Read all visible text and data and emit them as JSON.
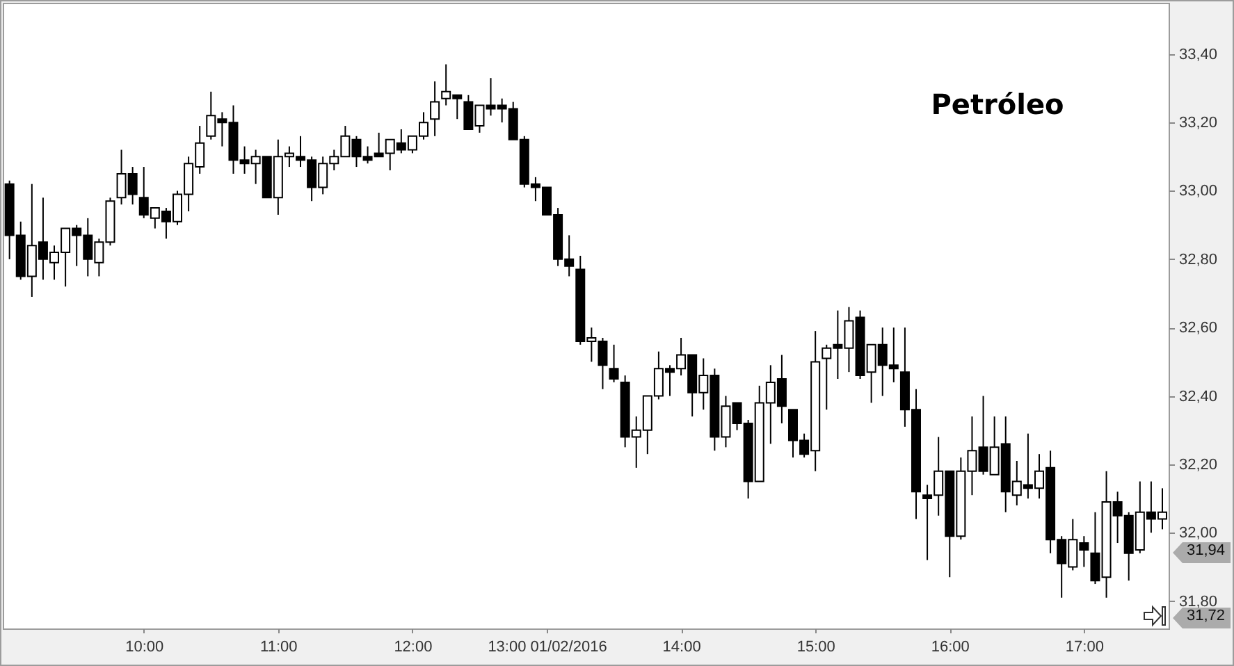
{
  "chart_data": {
    "type": "candlestick",
    "title": "Petróleo",
    "x": [
      9,
      9.0833,
      9.1667,
      9.25,
      9.3333,
      9.4167,
      9.5,
      9.5833,
      9.6667,
      9.75,
      9.8333,
      9.9167,
      10,
      10.0833,
      10.1667,
      10.25,
      10.3333,
      10.4167,
      10.5,
      10.5833,
      10.6667,
      10.75,
      10.8333,
      10.9167,
      11,
      11.0833,
      11.1667,
      11.25,
      11.3333,
      11.4167,
      11.5,
      11.5833,
      11.6667,
      11.75,
      11.8333,
      11.9167,
      12,
      12.0833,
      12.1667,
      12.25,
      12.3333,
      12.4167,
      12.5,
      12.5833,
      12.6667,
      12.75,
      12.8333,
      12.9167,
      13,
      13.0833,
      13.1667,
      13.25,
      13.3333,
      13.4167,
      13.5,
      13.5833,
      13.6667,
      13.75,
      13.8333,
      13.9167,
      14,
      14.0833,
      14.1667,
      14.25,
      14.3333,
      14.4167,
      14.5,
      14.5833,
      14.6667,
      14.75,
      14.8333,
      14.9167,
      15,
      15.0833,
      15.1667,
      15.25,
      15.3333,
      15.4167,
      15.5,
      15.5833,
      15.6667,
      15.75,
      15.8333,
      15.9167,
      16,
      16.0833,
      16.1667,
      16.25,
      16.3333,
      16.4167,
      16.5,
      16.5833,
      16.6667,
      16.75,
      16.8333,
      16.9167,
      17,
      17.0833,
      17.1667,
      17.25,
      17.3333,
      17.4167,
      17.5,
      17.5833
    ],
    "ohlc": [
      [
        33.02,
        33.03,
        32.8,
        32.87
      ],
      [
        32.87,
        32.91,
        32.74,
        32.75
      ],
      [
        32.75,
        33.02,
        32.69,
        32.84
      ],
      [
        32.85,
        32.98,
        32.74,
        32.8
      ],
      [
        32.79,
        32.84,
        32.74,
        32.82
      ],
      [
        32.82,
        32.89,
        32.72,
        32.89
      ],
      [
        32.89,
        32.9,
        32.78,
        32.87
      ],
      [
        32.87,
        32.92,
        32.75,
        32.8
      ],
      [
        32.79,
        32.86,
        32.75,
        32.85
      ],
      [
        32.85,
        32.98,
        32.84,
        32.97
      ],
      [
        32.98,
        33.12,
        32.96,
        33.05
      ],
      [
        33.05,
        33.07,
        32.96,
        32.99
      ],
      [
        32.98,
        33.07,
        32.92,
        32.93
      ],
      [
        32.92,
        32.95,
        32.89,
        32.95
      ],
      [
        32.94,
        32.95,
        32.86,
        32.91
      ],
      [
        32.91,
        33.0,
        32.9,
        32.99
      ],
      [
        32.99,
        33.1,
        32.94,
        33.08
      ],
      [
        33.07,
        33.19,
        33.05,
        33.14
      ],
      [
        33.16,
        33.29,
        33.15,
        33.22
      ],
      [
        33.21,
        33.23,
        33.13,
        33.2
      ],
      [
        33.2,
        33.25,
        33.05,
        33.09
      ],
      [
        33.09,
        33.13,
        33.05,
        33.08
      ],
      [
        33.08,
        33.12,
        33.02,
        33.1
      ],
      [
        33.1,
        33.1,
        32.98,
        32.98
      ],
      [
        32.98,
        33.15,
        32.93,
        33.1
      ],
      [
        33.1,
        33.13,
        33.07,
        33.11
      ],
      [
        33.1,
        33.16,
        33.07,
        33.09
      ],
      [
        33.09,
        33.1,
        32.97,
        33.01
      ],
      [
        33.01,
        33.1,
        32.99,
        33.08
      ],
      [
        33.08,
        33.12,
        33.06,
        33.1
      ],
      [
        33.1,
        33.19,
        33.1,
        33.16
      ],
      [
        33.15,
        33.16,
        33.07,
        33.1
      ],
      [
        33.1,
        33.13,
        33.08,
        33.09
      ],
      [
        33.11,
        33.17,
        33.1,
        33.1
      ],
      [
        33.11,
        33.15,
        33.06,
        33.15
      ],
      [
        33.14,
        33.18,
        33.11,
        33.12
      ],
      [
        33.12,
        33.16,
        33.11,
        33.16
      ],
      [
        33.16,
        33.23,
        33.15,
        33.2
      ],
      [
        33.21,
        33.32,
        33.16,
        33.26
      ],
      [
        33.27,
        33.37,
        33.25,
        33.29
      ],
      [
        33.28,
        33.28,
        33.21,
        33.27
      ],
      [
        33.26,
        33.28,
        33.18,
        33.18
      ],
      [
        33.19,
        33.25,
        33.17,
        33.25
      ],
      [
        33.25,
        33.33,
        33.22,
        33.24
      ],
      [
        33.25,
        33.27,
        33.2,
        33.24
      ],
      [
        33.24,
        33.26,
        33.15,
        33.15
      ],
      [
        33.15,
        33.16,
        33.01,
        33.02
      ],
      [
        33.02,
        33.04,
        32.97,
        33.01
      ],
      [
        33.01,
        33.01,
        32.93,
        32.93
      ],
      [
        32.93,
        32.95,
        32.78,
        32.8
      ],
      [
        32.8,
        32.87,
        32.75,
        32.78
      ],
      [
        32.77,
        32.81,
        32.55,
        32.56
      ],
      [
        32.56,
        32.6,
        32.5,
        32.57
      ],
      [
        32.56,
        32.57,
        32.42,
        32.49
      ],
      [
        32.48,
        32.55,
        32.44,
        32.45
      ],
      [
        32.44,
        32.46,
        32.25,
        32.28
      ],
      [
        32.28,
        32.34,
        32.19,
        32.3
      ],
      [
        32.3,
        32.4,
        32.23,
        32.4
      ],
      [
        32.4,
        32.53,
        32.39,
        32.48
      ],
      [
        32.48,
        32.49,
        32.4,
        32.47
      ],
      [
        32.48,
        32.57,
        32.46,
        32.52
      ],
      [
        32.52,
        32.52,
        32.34,
        32.41
      ],
      [
        32.41,
        32.51,
        32.36,
        32.46
      ],
      [
        32.46,
        32.48,
        32.24,
        32.28
      ],
      [
        32.28,
        32.4,
        32.25,
        32.37
      ],
      [
        32.38,
        32.38,
        32.3,
        32.32
      ],
      [
        32.32,
        32.33,
        32.1,
        32.15
      ],
      [
        32.15,
        32.43,
        32.15,
        32.38
      ],
      [
        32.38,
        32.49,
        32.26,
        32.44
      ],
      [
        32.45,
        32.52,
        32.32,
        32.37
      ],
      [
        32.36,
        32.36,
        32.22,
        32.27
      ],
      [
        32.27,
        32.29,
        32.22,
        32.23
      ],
      [
        32.24,
        32.59,
        32.18,
        32.5
      ],
      [
        32.51,
        32.55,
        32.36,
        32.54
      ],
      [
        32.55,
        32.65,
        32.45,
        32.54
      ],
      [
        32.54,
        32.66,
        32.47,
        32.62
      ],
      [
        32.63,
        32.65,
        32.45,
        32.46
      ],
      [
        32.47,
        32.55,
        32.38,
        32.55
      ],
      [
        32.55,
        32.6,
        32.4,
        32.49
      ],
      [
        32.49,
        32.6,
        32.44,
        32.48
      ],
      [
        32.47,
        32.6,
        32.31,
        32.36
      ],
      [
        32.36,
        32.42,
        32.04,
        32.12
      ],
      [
        32.11,
        32.14,
        31.92,
        32.1
      ],
      [
        32.11,
        32.28,
        32.05,
        32.18
      ],
      [
        32.18,
        32.18,
        31.87,
        31.99
      ],
      [
        31.99,
        32.22,
        31.98,
        32.18
      ],
      [
        32.18,
        32.34,
        32.11,
        32.24
      ],
      [
        32.25,
        32.4,
        32.17,
        32.18
      ],
      [
        32.17,
        32.34,
        32.17,
        32.25
      ],
      [
        32.26,
        32.34,
        32.06,
        32.12
      ],
      [
        32.11,
        32.21,
        32.08,
        32.15
      ],
      [
        32.14,
        32.29,
        32.1,
        32.13
      ],
      [
        32.13,
        32.23,
        32.1,
        32.18
      ],
      [
        32.19,
        32.24,
        31.94,
        31.98
      ],
      [
        31.98,
        31.99,
        31.81,
        31.91
      ],
      [
        31.9,
        32.04,
        31.89,
        31.98
      ],
      [
        31.97,
        31.99,
        31.9,
        31.95
      ],
      [
        31.94,
        32.06,
        31.85,
        31.86
      ],
      [
        31.87,
        32.18,
        31.81,
        32.09
      ],
      [
        32.09,
        32.12,
        31.97,
        32.05
      ],
      [
        32.05,
        32.06,
        31.86,
        31.94
      ],
      [
        31.95,
        32.15,
        31.94,
        32.06
      ],
      [
        32.06,
        32.15,
        32.0,
        32.04
      ],
      [
        32.04,
        32.13,
        32.01,
        32.06
      ]
    ],
    "xlim": [
      8.95,
      17.63
    ],
    "xticks": [
      {
        "value": 10,
        "label": "10:00"
      },
      {
        "value": 11,
        "label": "11:00"
      },
      {
        "value": 12,
        "label": "12:00"
      },
      {
        "value": 13,
        "label": "13:00 01/02/2016"
      },
      {
        "value": 14,
        "label": "14:00"
      },
      {
        "value": 15,
        "label": "15:00"
      },
      {
        "value": 16,
        "label": "16:00"
      },
      {
        "value": 17,
        "label": "17:00"
      }
    ],
    "ylim": [
      31.72,
      33.55
    ],
    "yticks": [
      {
        "value": 31.8,
        "label": "31,80"
      },
      {
        "value": 32,
        "label": "32,00"
      },
      {
        "value": 32.2,
        "label": "32,20"
      },
      {
        "value": 32.4,
        "label": "32,40"
      },
      {
        "value": 32.6,
        "label": "32,60"
      },
      {
        "value": 32.8,
        "label": "32,80"
      },
      {
        "value": 33,
        "label": "33,00"
      },
      {
        "value": 33.2,
        "label": "33,20"
      },
      {
        "value": 33.4,
        "label": "33,40"
      }
    ],
    "annotations": [
      "31,94",
      "31,72"
    ]
  }
}
